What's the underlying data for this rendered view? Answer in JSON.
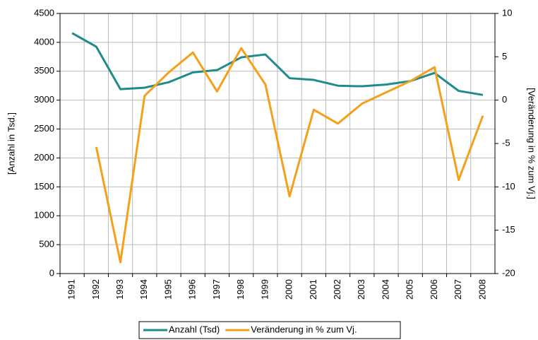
{
  "chart_data": {
    "type": "line",
    "y_label": "[Anzahl in Tsd.]",
    "y2_label": "[Veränderung in % zum Vj.]",
    "categories": [
      "1991",
      "1992",
      "1993",
      "1994",
      "1995",
      "1996",
      "1997",
      "1998",
      "1999",
      "2000",
      "2001",
      "2002",
      "2003",
      "2004",
      "2005",
      "2006",
      "2007",
      "2008"
    ],
    "series": [
      {
        "name": "Anzahl (Tsd)",
        "color": "#1f8c8c",
        "values": [
          4160,
          3925,
          3190,
          3215,
          3310,
          3480,
          3520,
          3740,
          3790,
          3380,
          3350,
          3250,
          3240,
          3270,
          3330,
          3470,
          3160,
          3090
        ]
      },
      {
        "name": "Veränderung in % zum Vj.",
        "color": "#f5a01a",
        "axis": "y2",
        "values": [
          null,
          -5.4,
          -18.7,
          0.5,
          3.2,
          5.5,
          1.0,
          6.0,
          1.8,
          -11.1,
          -1.1,
          -2.7,
          -0.4,
          0.9,
          2.2,
          3.8,
          -9.2,
          -1.8
        ]
      }
    ],
    "ylim": [
      0,
      4500
    ],
    "yticks": [
      0,
      500,
      1000,
      1500,
      2000,
      2500,
      3000,
      3500,
      4000,
      4500
    ],
    "y2lim": [
      -20,
      10
    ],
    "y2ticks": [
      -20,
      -15,
      -10,
      -5,
      0,
      5,
      10
    ],
    "grid": true,
    "legend": "bottom"
  }
}
